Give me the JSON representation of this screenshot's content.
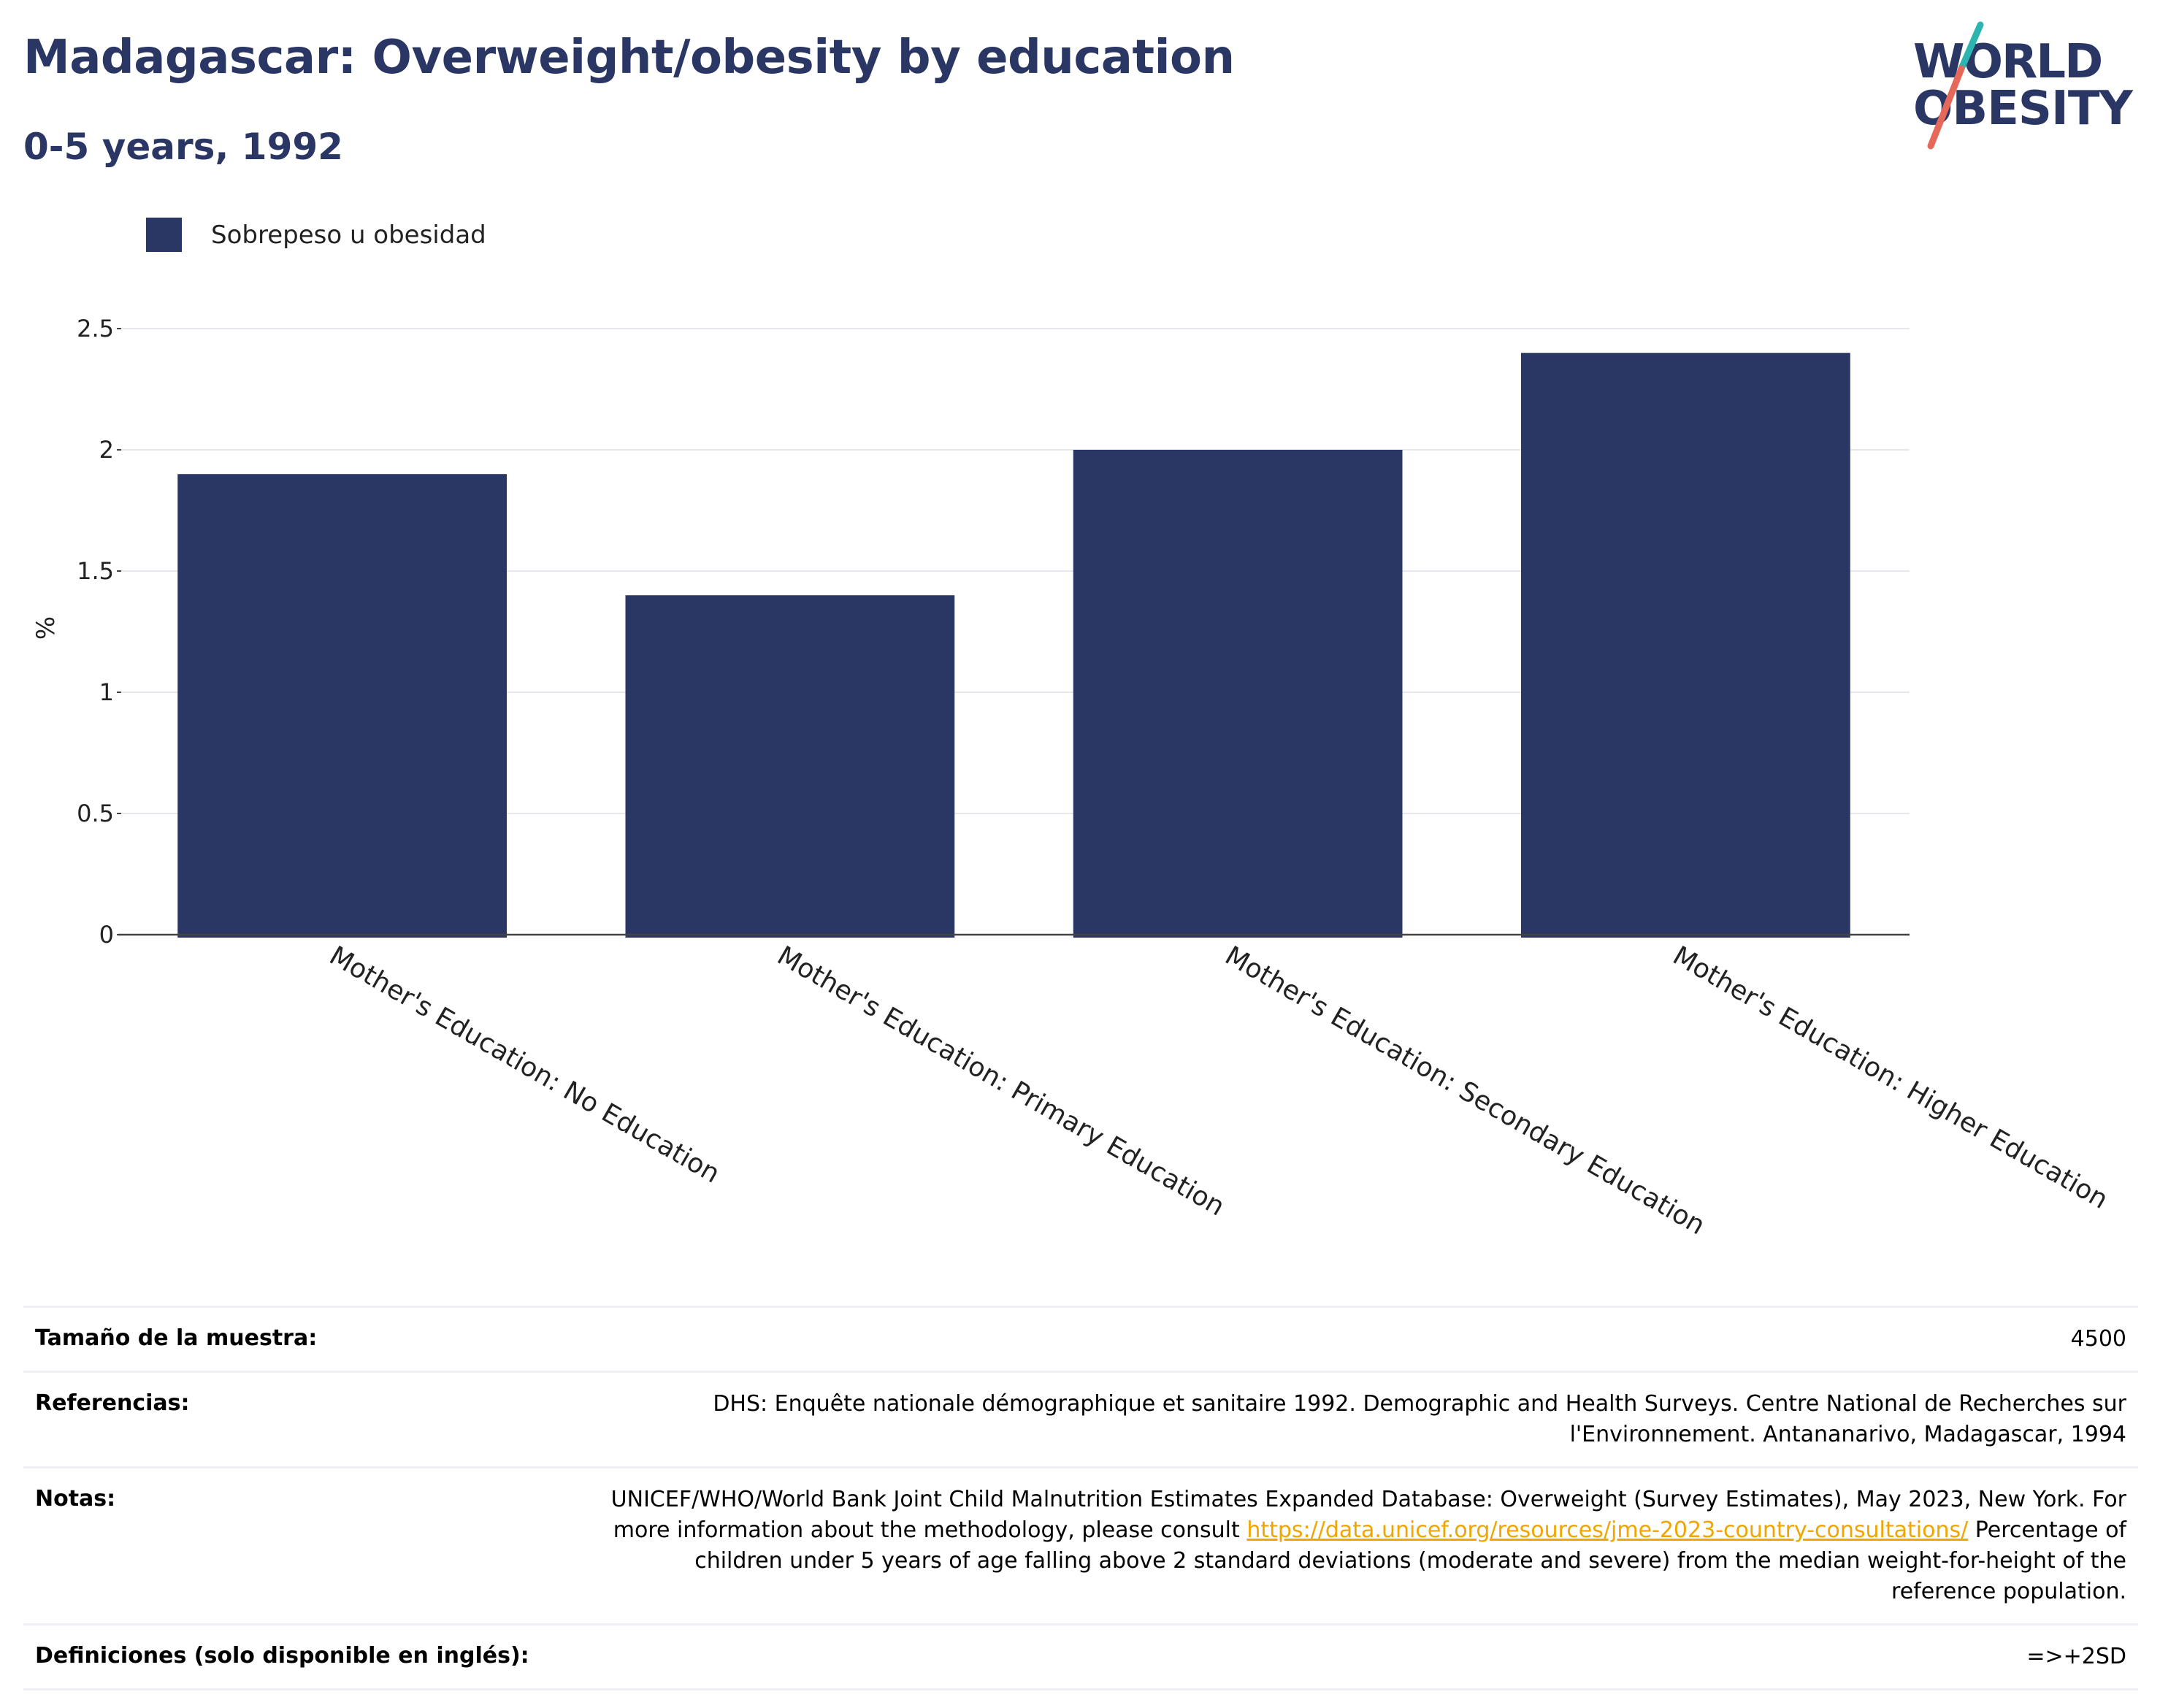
{
  "header": {
    "title": "Madagascar: Overweight/obesity by education",
    "subtitle": "0-5 years, 1992"
  },
  "logo": {
    "line1": "WORLD",
    "line2": "OBESITY",
    "slash_colors": [
      "#2bb5b0",
      "#e5685b"
    ]
  },
  "chart_data": {
    "type": "bar",
    "categories": [
      "Mother's Education: No Education",
      "Mother's Education: Primary Education",
      "Mother's Education: Secondary Education",
      "Mother's Education: Higher Education"
    ],
    "series": [
      {
        "name": "Sobrepeso u obesidad",
        "values": [
          1.9,
          1.4,
          2.0,
          2.4
        ],
        "color": "#2a3663"
      }
    ],
    "xlabel": "",
    "ylabel": "%",
    "ylim": [
      0,
      2.5
    ],
    "yticks": [
      0,
      0.5,
      1,
      1.5,
      2,
      2.5
    ],
    "ytick_labels": [
      "0",
      "0.5",
      "1",
      "1.5",
      "2",
      "2.5"
    ],
    "grid": true,
    "legend_position": "top-left"
  },
  "info": {
    "sample_label": "Tamaño de la muestra:",
    "sample_value": "4500",
    "refs_label": "Referencias:",
    "refs_value": "DHS: Enquête nationale démographique et sanitaire 1992. Demographic and Health Surveys. Centre National de Recherches sur l'Environnement. Antananarivo, Madagascar, 1994",
    "notes_label": "Notas:",
    "notes_value_before": "UNICEF/WHO/World Bank Joint Child Malnutrition Estimates Expanded Database: Overweight (Survey Estimates), May 2023, New York. For more information about the methodology, please consult ",
    "notes_link": "https://data.unicef.org/resources/jme-2023-country-consultations/",
    "notes_value_after": " Percentage of children under 5 years of age falling above 2 standard deviations (moderate and severe) from the median weight-for-height of the reference population.",
    "defs_label": "Definiciones (solo disponible en inglés):",
    "defs_value": "=>+2SD"
  }
}
